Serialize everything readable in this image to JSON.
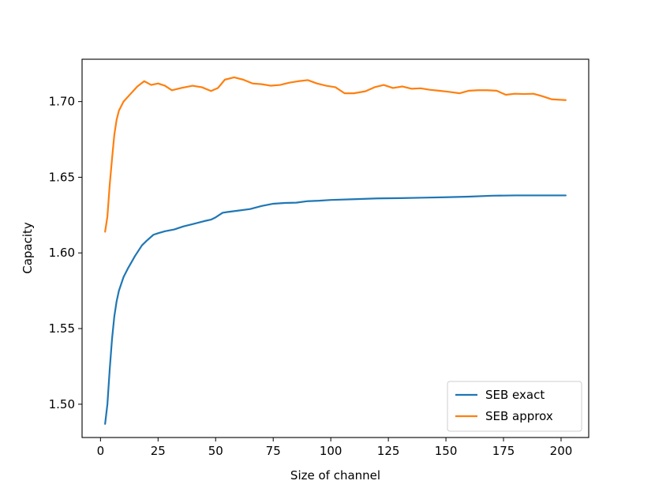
{
  "chart_data": {
    "type": "line",
    "title": "",
    "xlabel": "Size of channel",
    "ylabel": "Capacity",
    "xlim": [
      -8,
      212
    ],
    "ylim": [
      1.478,
      1.728
    ],
    "grid": false,
    "legend_position": "lower-right",
    "x_ticks": [
      0,
      25,
      50,
      75,
      100,
      125,
      150,
      175,
      200
    ],
    "x_tick_labels": [
      "0",
      "25",
      "50",
      "75",
      "100",
      "125",
      "150",
      "175",
      "200"
    ],
    "y_ticks": [
      1.5,
      1.55,
      1.6,
      1.65,
      1.7
    ],
    "y_tick_labels": [
      "1.50",
      "1.55",
      "1.60",
      "1.65",
      "1.70"
    ],
    "series": [
      {
        "name": "SEB exact",
        "color": "#1f77b4",
        "x": [
          2,
          3,
          4,
          5,
          6,
          7,
          8,
          10,
          12,
          15,
          18,
          20,
          23,
          25,
          28,
          32,
          36,
          40,
          45,
          48,
          50,
          53,
          55,
          60,
          65,
          70,
          75,
          80,
          85,
          90,
          95,
          100,
          110,
          120,
          130,
          140,
          150,
          160,
          170,
          180,
          190,
          202
        ],
        "y": [
          1.487,
          1.5,
          1.523,
          1.543,
          1.558,
          1.568,
          1.575,
          1.584,
          1.59,
          1.598,
          1.605,
          1.608,
          1.612,
          1.613,
          1.6143,
          1.6155,
          1.6175,
          1.619,
          1.621,
          1.622,
          1.6235,
          1.6265,
          1.627,
          1.628,
          1.629,
          1.631,
          1.6325,
          1.633,
          1.6332,
          1.6342,
          1.6345,
          1.635,
          1.6355,
          1.636,
          1.6362,
          1.6365,
          1.6368,
          1.6372,
          1.6378,
          1.638,
          1.638,
          1.638
        ]
      },
      {
        "name": "SEB approx",
        "color": "#ff7f0e",
        "x": [
          2,
          3,
          4,
          5,
          6,
          7,
          8,
          10,
          13,
          16,
          19,
          22,
          25,
          28,
          31,
          35,
          40,
          44,
          48,
          51,
          54,
          58,
          62,
          66,
          70,
          74,
          78,
          82,
          86,
          90,
          94,
          98,
          102,
          106,
          110,
          115,
          119,
          123,
          127,
          131,
          135,
          139,
          143,
          147,
          151,
          156,
          160,
          164,
          168,
          172,
          176,
          180,
          184,
          188,
          192,
          196,
          202
        ],
        "y": [
          1.614,
          1.624,
          1.645,
          1.662,
          1.678,
          1.688,
          1.694,
          1.7,
          1.705,
          1.71,
          1.7135,
          1.711,
          1.712,
          1.7105,
          1.7075,
          1.709,
          1.7105,
          1.7095,
          1.707,
          1.709,
          1.7145,
          1.716,
          1.7145,
          1.712,
          1.7115,
          1.7105,
          1.711,
          1.7125,
          1.7135,
          1.7142,
          1.712,
          1.7105,
          1.7095,
          1.7055,
          1.7055,
          1.7068,
          1.7095,
          1.711,
          1.709,
          1.71,
          1.7085,
          1.7088,
          1.7078,
          1.7072,
          1.7065,
          1.7055,
          1.7072,
          1.7075,
          1.7075,
          1.7072,
          1.7045,
          1.7052,
          1.705,
          1.7052,
          1.7035,
          1.7015,
          1.701
        ]
      }
    ]
  }
}
